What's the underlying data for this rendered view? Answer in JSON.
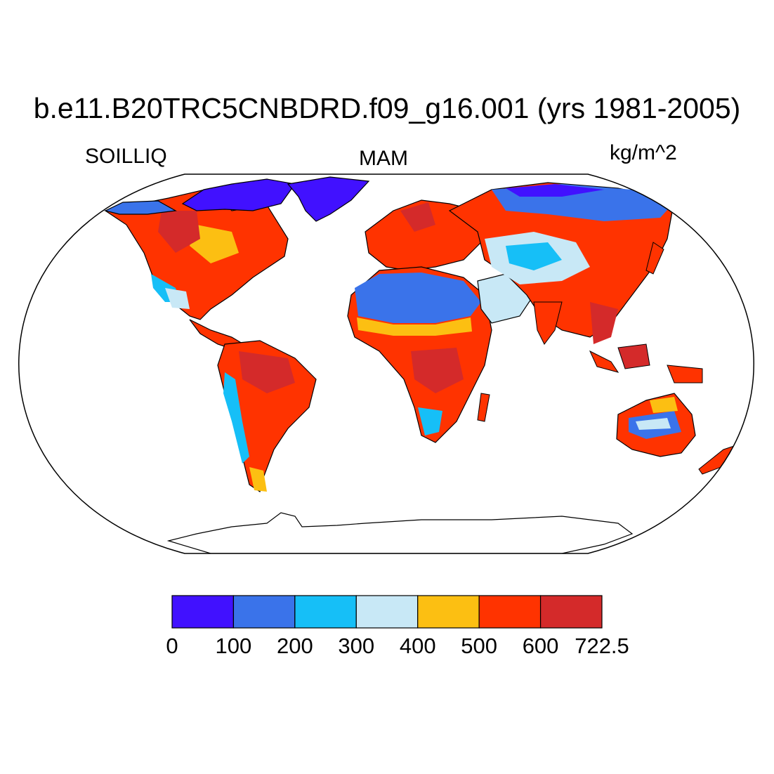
{
  "title": "b.e11.B20TRC5CNBDRD.f09_g16.001 (yrs 1981-2005)",
  "variable": "SOILLIQ",
  "season": "MAM",
  "units": "kg/m^2",
  "colorbar": {
    "bins": [
      {
        "from": 0,
        "to": 100,
        "color": "#4111ff"
      },
      {
        "from": 100,
        "to": 200,
        "color": "#3a73ea"
      },
      {
        "from": 200,
        "to": 300,
        "color": "#16bff7"
      },
      {
        "from": 300,
        "to": 400,
        "color": "#c8e8f6"
      },
      {
        "from": 400,
        "to": 500,
        "color": "#fcbf12"
      },
      {
        "from": 500,
        "to": 600,
        "color": "#ff3300"
      },
      {
        "from": 600,
        "to": 722.5,
        "color": "#d42a2a"
      }
    ],
    "labels": [
      "0",
      "100",
      "200",
      "300",
      "400",
      "500",
      "600",
      "722.5"
    ]
  }
}
